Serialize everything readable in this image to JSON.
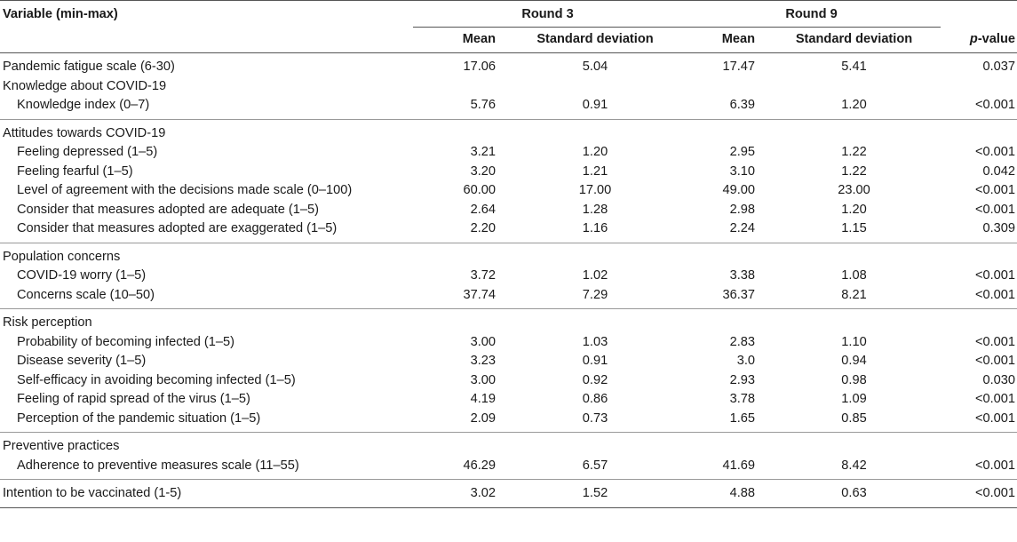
{
  "header": {
    "variable": "Variable (min-max)",
    "round3": "Round 3",
    "round9": "Round 9",
    "mean": "Mean",
    "sd": "Standard deviation",
    "p_italic": "p",
    "p_suffix": "-value"
  },
  "rows": [
    {
      "label": "Pandemic fatigue scale (6-30)",
      "r3m": "17.06",
      "r3s": "5.04",
      "r9m": "17.47",
      "r9s": "5.41",
      "p": "0.037"
    },
    {
      "label": "Knowledge about COVID-19"
    },
    {
      "label": "Knowledge index (0–7)",
      "r3m": "5.76",
      "r3s": "0.91",
      "r9m": "6.39",
      "r9s": "1.20",
      "p": "<0.001"
    },
    {
      "label": "Attitudes towards COVID-19"
    },
    {
      "label": "Feeling depressed (1–5)",
      "r3m": "3.21",
      "r3s": "1.20",
      "r9m": "2.95",
      "r9s": "1.22",
      "p": "<0.001"
    },
    {
      "label": "Feeling fearful (1–5)",
      "r3m": "3.20",
      "r3s": "1.21",
      "r9m": "3.10",
      "r9s": "1.22",
      "p": "0.042"
    },
    {
      "label": "Level of agreement with the decisions made scale (0–100)",
      "r3m": "60.00",
      "r3s": "17.00",
      "r9m": "49.00",
      "r9s": "23.00",
      "p": "<0.001"
    },
    {
      "label": "Consider that measures adopted are adequate (1–5)",
      "r3m": "2.64",
      "r3s": "1.28",
      "r9m": "2.98",
      "r9s": "1.20",
      "p": "<0.001"
    },
    {
      "label": "Consider that measures adopted are exaggerated (1–5)",
      "r3m": "2.20",
      "r3s": "1.16",
      "r9m": "2.24",
      "r9s": "1.15",
      "p": "0.309"
    },
    {
      "label": "Population concerns"
    },
    {
      "label": "COVID-19 worry (1–5)",
      "r3m": "3.72",
      "r3s": "1.02",
      "r9m": "3.38",
      "r9s": "1.08",
      "p": "<0.001"
    },
    {
      "label": "Concerns scale (10–50)",
      "r3m": "37.74",
      "r3s": "7.29",
      "r9m": "36.37",
      "r9s": "8.21",
      "p": "<0.001"
    },
    {
      "label": "Risk perception"
    },
    {
      "label": "Probability of becoming infected (1–5)",
      "r3m": "3.00",
      "r3s": "1.03",
      "r9m": "2.83",
      "r9s": "1.10",
      "p": "<0.001"
    },
    {
      "label": "Disease severity (1–5)",
      "r3m": "3.23",
      "r3s": "0.91",
      "r9m": "3.0",
      "r9s": "0.94",
      "p": "<0.001"
    },
    {
      "label": "Self-efficacy in avoiding becoming infected (1–5)",
      "r3m": "3.00",
      "r3s": "0.92",
      "r9m": "2.93",
      "r9s": "0.98",
      "p": "0.030"
    },
    {
      "label": "Feeling of rapid spread of the virus (1–5)",
      "r3m": "4.19",
      "r3s": "0.86",
      "r9m": "3.78",
      "r9s": "1.09",
      "p": "<0.001"
    },
    {
      "label": "Perception of the pandemic situation (1–5)",
      "r3m": "2.09",
      "r3s": "0.73",
      "r9m": "1.65",
      "r9s": "0.85",
      "p": "<0.001"
    },
    {
      "label": "Preventive practices"
    },
    {
      "label": "Adherence to preventive measures scale (11–55)",
      "r3m": "46.29",
      "r3s": "6.57",
      "r9m": "41.69",
      "r9s": "8.42",
      "p": "<0.001"
    },
    {
      "label": "Intention to be vaccinated (1-5)",
      "r3m": "3.02",
      "r3s": "1.52",
      "r9m": "4.88",
      "r9s": "0.63",
      "p": "<0.001"
    }
  ]
}
